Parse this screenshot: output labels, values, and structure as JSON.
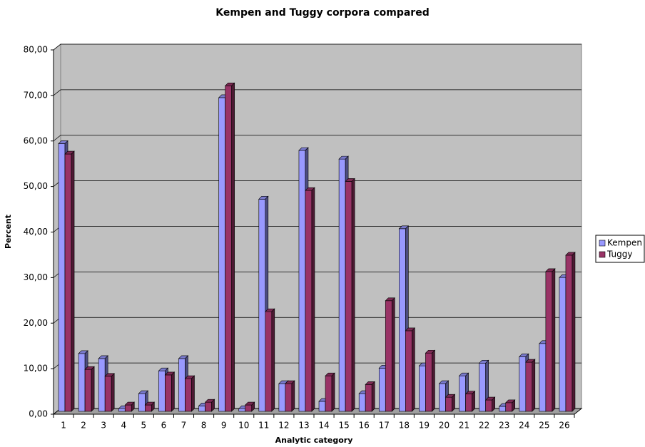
{
  "chart_data": {
    "type": "bar",
    "title": "Kempen and Tuggy corpora compared",
    "x_label": "Analytic category",
    "y_label": "Percent",
    "categories": [
      "1",
      "2",
      "3",
      "4",
      "5",
      "6",
      "7",
      "8",
      "9",
      "10",
      "11",
      "12",
      "13",
      "14",
      "15",
      "16",
      "17",
      "18",
      "19",
      "20",
      "21",
      "22",
      "23",
      "24",
      "25",
      "26"
    ],
    "series": [
      {
        "name": "Kempen",
        "color": "#9999ff",
        "values": [
          58.8,
          12.7,
          11.6,
          0.6,
          3.9,
          8.9,
          11.6,
          1.2,
          68.9,
          0.6,
          46.6,
          6.1,
          57.3,
          2.2,
          55.4,
          3.9,
          9.5,
          40.1,
          10.0,
          6.1,
          7.8,
          10.6,
          1.1,
          12.0,
          14.9,
          29.4
        ]
      },
      {
        "name": "Tuggy",
        "color": "#993366",
        "values": [
          56.5,
          9.2,
          7.7,
          1.4,
          1.4,
          8.0,
          7.2,
          2.0,
          71.5,
          1.4,
          21.9,
          6.1,
          48.5,
          7.8,
          50.5,
          5.9,
          24.3,
          17.7,
          12.8,
          3.1,
          3.8,
          2.5,
          1.9,
          10.8,
          30.7,
          34.3
        ]
      }
    ],
    "ylim": [
      0,
      80
    ],
    "yticks": [
      {
        "value": 0,
        "label": "0,00"
      },
      {
        "value": 10,
        "label": "10,00"
      },
      {
        "value": 20,
        "label": "20,00"
      },
      {
        "value": 30,
        "label": "30,00"
      },
      {
        "value": 40,
        "label": "40,00"
      },
      {
        "value": 50,
        "label": "50,00"
      },
      {
        "value": 60,
        "label": "60,00"
      },
      {
        "value": 70,
        "label": "70,00"
      },
      {
        "value": 80,
        "label": "80,00"
      }
    ],
    "grid": true,
    "legend": "right"
  }
}
